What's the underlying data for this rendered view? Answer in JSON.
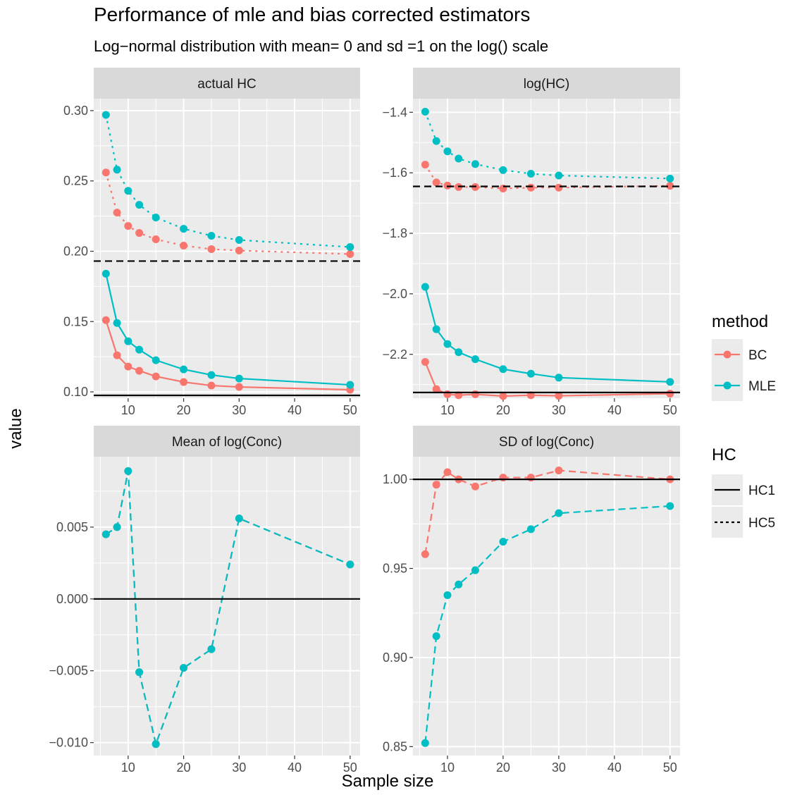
{
  "chart_data": {
    "type": "line",
    "title": "Performance of mle and bias corrected estimators",
    "subtitle": "Log−normal distribution with mean= 0 and sd =1 on the log() scale",
    "xlabel": "Sample size",
    "ylabel": "value",
    "x": [
      6,
      8,
      10,
      12,
      15,
      20,
      25,
      30,
      50
    ],
    "colors": {
      "BC": "#F8766D",
      "MLE": "#00BFC4",
      "panel_bg": "#EBEBEB",
      "strip_bg": "#D9D9D9",
      "reference": "#000000"
    },
    "legends": [
      {
        "title": "method",
        "items": [
          {
            "label": "BC",
            "color": "#F8766D"
          },
          {
            "label": "MLE",
            "color": "#00BFC4"
          }
        ]
      },
      {
        "title": "HC",
        "items": [
          {
            "label": "HC1",
            "linetype": "solid"
          },
          {
            "label": "HC5",
            "linetype": "dashed"
          }
        ]
      }
    ],
    "legend_position": "right",
    "panels": [
      {
        "strip": "actual HC",
        "xlim": [
          3.8,
          51.8
        ],
        "xticks": [
          10,
          20,
          30,
          40,
          50
        ],
        "xtick_labels": [
          "10",
          "20",
          "30",
          "40",
          "50"
        ],
        "ylim": [
          0.0955,
          0.3085
        ],
        "yticks": [
          0.1,
          0.15,
          0.2,
          0.25,
          0.3
        ],
        "ytick_labels": [
          "0.10",
          "0.15",
          "0.20",
          "0.25",
          "0.30"
        ],
        "reference_lines": [
          {
            "hc": "HC1",
            "y": 0.0975,
            "linetype": "solid"
          },
          {
            "hc": "HC5",
            "y": 0.193,
            "linetype": "dashed"
          }
        ],
        "series": [
          {
            "method": "BC",
            "hc": "HC1",
            "linetype": "solid",
            "values": [
              0.151,
              0.126,
              0.118,
              0.115,
              0.111,
              0.107,
              0.1045,
              0.1035,
              0.1015
            ]
          },
          {
            "method": "MLE",
            "hc": "HC1",
            "linetype": "solid",
            "values": [
              0.184,
              0.149,
              0.136,
              0.13,
              0.1225,
              0.116,
              0.112,
              0.1095,
              0.105
            ]
          },
          {
            "method": "BC",
            "hc": "HC5",
            "linetype": "dotted",
            "values": [
              0.256,
              0.2275,
              0.218,
              0.213,
              0.2085,
              0.204,
              0.2015,
              0.2005,
              0.198
            ]
          },
          {
            "method": "MLE",
            "hc": "HC5",
            "linetype": "dotted",
            "values": [
              0.297,
              0.258,
              0.243,
              0.233,
              0.224,
              0.216,
              0.211,
              0.208,
              0.203
            ]
          }
        ]
      },
      {
        "strip": "log(HC)",
        "xlim": [
          3.8,
          51.8
        ],
        "xticks": [
          10,
          20,
          30,
          40,
          50
        ],
        "xtick_labels": [
          "10",
          "20",
          "30",
          "40",
          "50"
        ],
        "ylim": [
          -2.345,
          -1.355
        ],
        "yticks": [
          -2.2,
          -2.0,
          -1.8,
          -1.6,
          -1.4
        ],
        "ytick_labels": [
          "−2.2",
          "−2.0",
          "−1.8",
          "−1.6",
          "−1.4"
        ],
        "reference_lines": [
          {
            "hc": "HC1",
            "y": -2.326,
            "linetype": "solid"
          },
          {
            "hc": "HC5",
            "y": -1.645,
            "linetype": "dashed"
          }
        ],
        "series": [
          {
            "method": "BC",
            "hc": "HC1",
            "linetype": "solid",
            "values": [
              -2.225,
              -2.315,
              -2.332,
              -2.335,
              -2.332,
              -2.338,
              -2.335,
              -2.337,
              -2.33
            ]
          },
          {
            "method": "MLE",
            "hc": "HC1",
            "linetype": "solid",
            "values": [
              -1.977,
              -2.117,
              -2.166,
              -2.193,
              -2.216,
              -2.249,
              -2.264,
              -2.277,
              -2.291
            ]
          },
          {
            "method": "BC",
            "hc": "HC5",
            "linetype": "dotted",
            "values": [
              -1.573,
              -1.632,
              -1.642,
              -1.647,
              -1.647,
              -1.652,
              -1.649,
              -1.649,
              -1.643
            ]
          },
          {
            "method": "MLE",
            "hc": "HC5",
            "linetype": "dotted",
            "values": [
              -1.398,
              -1.495,
              -1.529,
              -1.553,
              -1.571,
              -1.591,
              -1.603,
              -1.609,
              -1.619
            ]
          }
        ]
      },
      {
        "strip": "Mean of log(Conc)",
        "xlim": [
          3.8,
          51.8
        ],
        "xticks": [
          10,
          20,
          30,
          40,
          50
        ],
        "xtick_labels": [
          "10",
          "20",
          "30",
          "40",
          "50"
        ],
        "ylim": [
          -0.0109,
          0.0099
        ],
        "yticks": [
          -0.01,
          -0.005,
          0.0,
          0.005
        ],
        "ytick_labels": [
          "−0.010",
          "−0.005",
          "0.000",
          "0.005"
        ],
        "reference_lines": [
          {
            "y": 0.0,
            "linetype": "solid"
          }
        ],
        "series": [
          {
            "method": "BC",
            "linetype": "dashed",
            "values": [
              0.0045,
              0.005,
              0.0089,
              -0.0051,
              -0.0101,
              -0.0048,
              -0.0035,
              0.0056,
              0.0024
            ]
          },
          {
            "method": "MLE",
            "linetype": "dashed",
            "values": [
              0.0045,
              0.005,
              0.0089,
              -0.0051,
              -0.0101,
              -0.0048,
              -0.0035,
              0.0056,
              0.0024
            ]
          }
        ]
      },
      {
        "strip": "SD of log(Conc)",
        "xlim": [
          3.8,
          51.8
        ],
        "xticks": [
          10,
          20,
          30,
          40,
          50
        ],
        "xtick_labels": [
          "10",
          "20",
          "30",
          "40",
          "50"
        ],
        "ylim": [
          0.845,
          1.0127
        ],
        "yticks": [
          0.85,
          0.9,
          0.95,
          1.0
        ],
        "ytick_labels": [
          "0.85",
          "0.90",
          "0.95",
          "1.00"
        ],
        "reference_lines": [
          {
            "y": 1.0,
            "linetype": "solid"
          }
        ],
        "series": [
          {
            "method": "BC",
            "linetype": "dashed",
            "values": [
              0.958,
              0.997,
              1.004,
              1.0,
              0.996,
              1.001,
              1.001,
              1.005,
              1.0
            ]
          },
          {
            "method": "MLE",
            "linetype": "dashed",
            "values": [
              0.852,
              0.912,
              0.935,
              0.941,
              0.949,
              0.965,
              0.972,
              0.981,
              0.985
            ]
          }
        ]
      }
    ]
  }
}
